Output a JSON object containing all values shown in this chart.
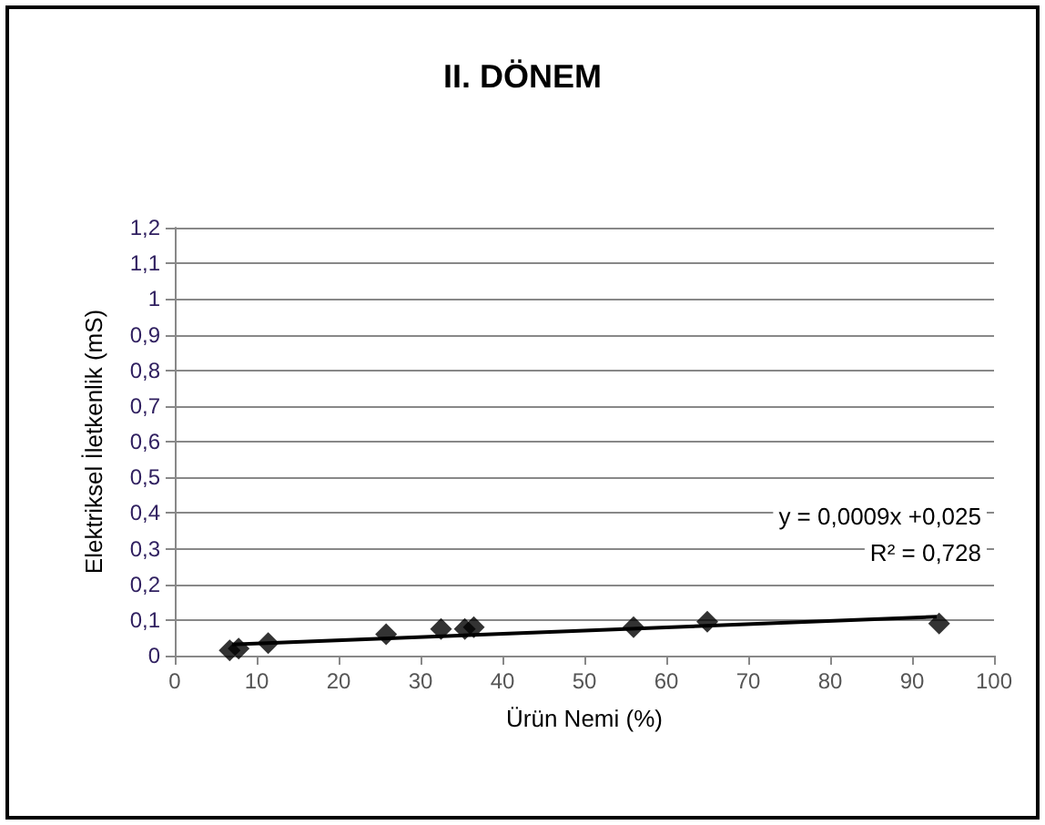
{
  "chart_data": {
    "type": "scatter",
    "title": "II. DÖNEM",
    "xlabel": "Ürün Nemi (%)",
    "ylabel": "Elektriksel İletkenlik (mS)",
    "annotations": [
      "y = 0,0009x +0,025",
      "R² = 0,728"
    ],
    "series": [
      {
        "color": "#000000",
        "marker": "diamond",
        "x": [
          6.7,
          7.8,
          11.4,
          25.8,
          32.5,
          35.4,
          36.5,
          56,
          65,
          93.3
        ],
        "values": [
          0.015,
          0.02,
          0.035,
          0.06,
          0.075,
          0.075,
          0.08,
          0.08,
          0.095,
          0.09
        ]
      },
      {
        "type": "line",
        "color": "#000000",
        "marker": "none",
        "x": [
          7,
          93
        ],
        "values": [
          0.031,
          0.109
        ]
      }
    ],
    "xlim": [
      0,
      100
    ],
    "xticks": [
      0,
      10,
      20,
      30,
      40,
      50,
      60,
      70,
      80,
      90,
      100
    ],
    "ylim": [
      0,
      1.2
    ],
    "yticks": [
      0,
      {
        "value": 0.1,
        "label": "0,1"
      },
      {
        "value": 0.2,
        "label": "0,2"
      },
      {
        "value": 0.3,
        "label": "0,3"
      },
      {
        "value": 0.4,
        "label": "0,4"
      },
      {
        "value": 0.5,
        "label": "0,5"
      },
      {
        "value": 0.6,
        "label": "0,6"
      },
      {
        "value": 0.7,
        "label": "0,7"
      },
      {
        "value": 0.8,
        "label": "0,8"
      },
      {
        "value": 0.9,
        "label": "0,9"
      },
      1,
      {
        "value": 1.1,
        "label": "1,1"
      },
      {
        "value": 1.2,
        "label": "1,2"
      }
    ],
    "grid": "y"
  }
}
